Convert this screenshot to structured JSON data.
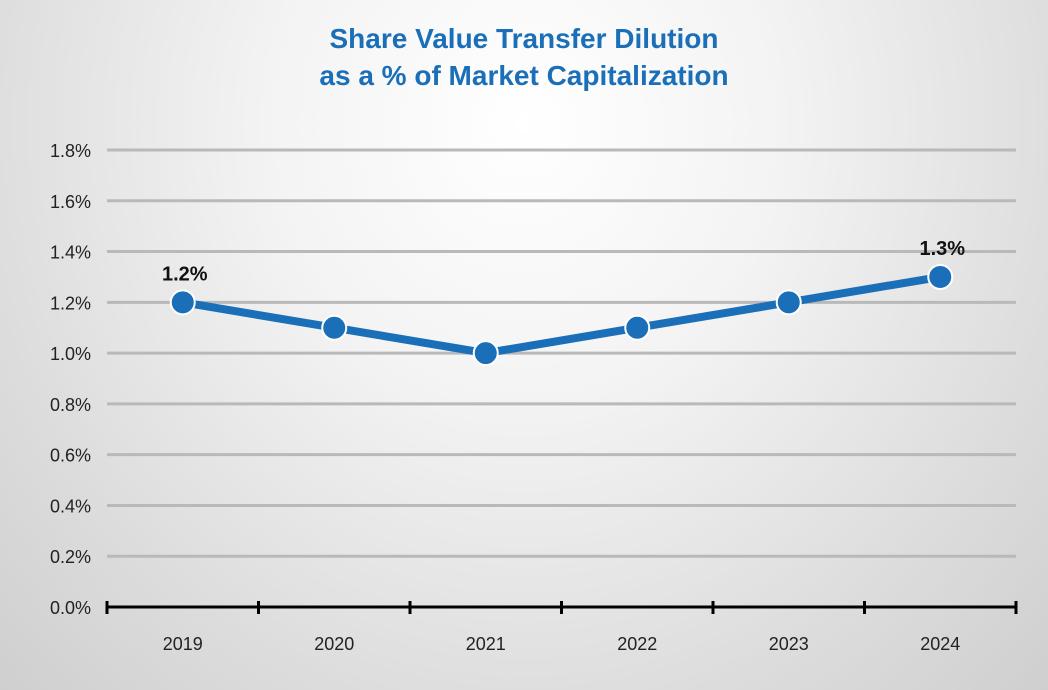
{
  "chart_data": {
    "type": "line",
    "title_line1": "Share Value Transfer Dilution",
    "title_line2": "as a % of Market Capitalization",
    "categories": [
      "2019",
      "2020",
      "2021",
      "2022",
      "2023",
      "2024"
    ],
    "series": [
      {
        "name": "Share Value Transfer Dilution",
        "values": [
          1.2,
          1.1,
          1.0,
          1.1,
          1.2,
          1.3
        ]
      }
    ],
    "ylim": [
      0,
      1.8
    ],
    "y_ticks": [
      0.0,
      0.2,
      0.4,
      0.6,
      0.8,
      1.0,
      1.2,
      1.4,
      1.6,
      1.8
    ],
    "y_tick_labels": [
      "0.0%",
      "0.2%",
      "0.4%",
      "0.6%",
      "0.8%",
      "1.0%",
      "1.2%",
      "1.4%",
      "1.6%",
      "1.8%"
    ],
    "data_labels": [
      {
        "index": 0,
        "text": "1.2%"
      },
      {
        "index": 5,
        "text": "1.3%"
      }
    ],
    "grid": true,
    "xlabel": "",
    "ylabel": "",
    "line_color": "#1a6fb8",
    "title_color": "#1a6fb8",
    "grid_color": "#b9b9b9"
  }
}
